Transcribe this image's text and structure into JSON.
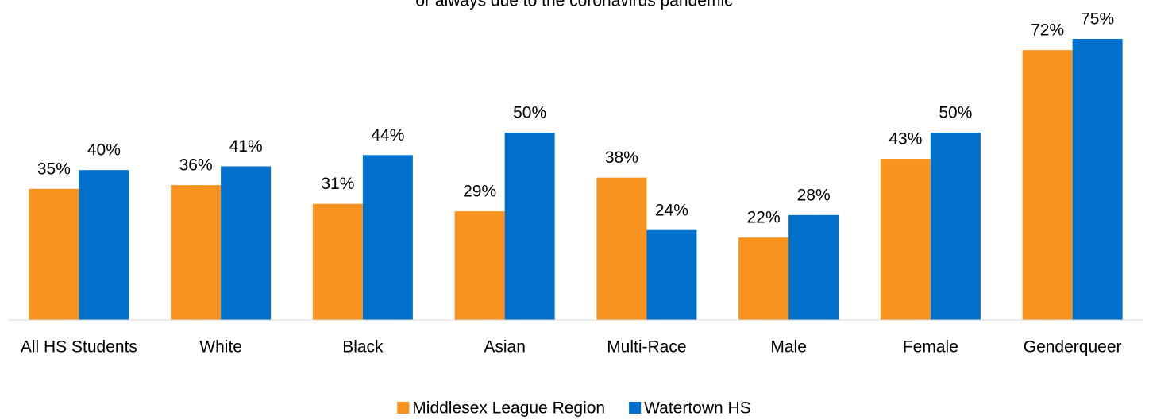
{
  "chart_data": {
    "type": "bar",
    "title": "or always due to the coronavirus pandemic",
    "categories": [
      "All HS Students",
      "White",
      "Black",
      "Asian",
      "Multi-Race",
      "Male",
      "Female",
      "Genderqueer"
    ],
    "series": [
      {
        "name": "Middlesex League Region",
        "color": "#f7931e",
        "values": [
          35,
          36,
          31,
          29,
          38,
          22,
          43,
          72
        ],
        "value_labels": [
          "35%",
          "36%",
          "31%",
          "29%",
          "38%",
          "22%",
          "43%",
          "72%"
        ]
      },
      {
        "name": "Watertown HS",
        "color": "#0070cd",
        "values": [
          40,
          41,
          44,
          50,
          24,
          28,
          50,
          75
        ],
        "value_labels": [
          "40%",
          "41%",
          "44%",
          "50%",
          "24%",
          "28%",
          "50%",
          "75%"
        ]
      }
    ],
    "legend": "bottom"
  }
}
